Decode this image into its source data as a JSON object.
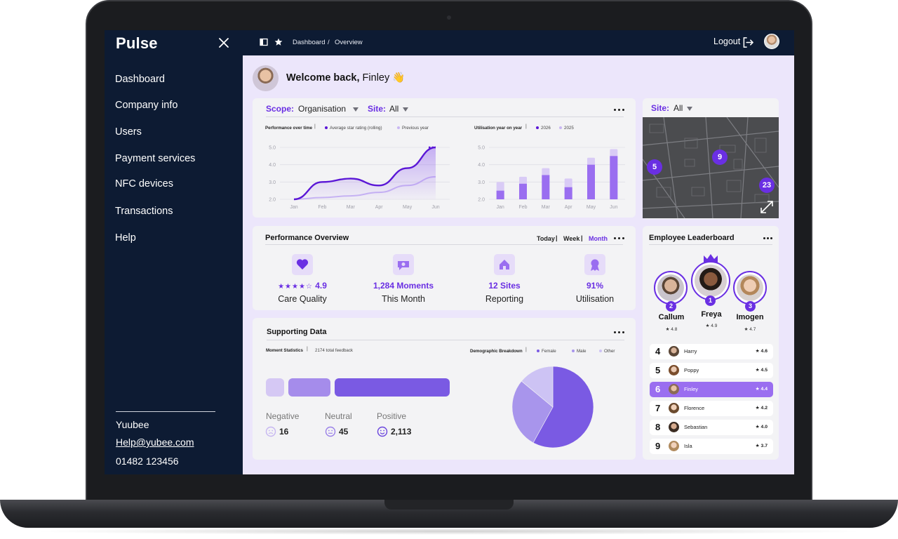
{
  "sidebar": {
    "brand": "Pulse",
    "items": [
      {
        "label": "Dashboard"
      },
      {
        "label": "Company info"
      },
      {
        "label": "Users"
      },
      {
        "label": "Payment services"
      },
      {
        "label": "NFC devices"
      },
      {
        "label": "Transactions"
      },
      {
        "label": "Help"
      }
    ],
    "footer": {
      "company": "Yuubee",
      "email": "Help@yubee.com",
      "phone": "01482 123456"
    }
  },
  "topbar": {
    "breadcrumb": [
      "Dashboard",
      "/",
      "Overview"
    ],
    "logout_label": "Logout"
  },
  "welcome": {
    "prefix": "Welcome back,",
    "name": "Finley",
    "emoji": "👋"
  },
  "filters": {
    "scope_label": "Scope:",
    "scope_value": "Organisation",
    "site_label": "Site:",
    "site_value": "All"
  },
  "chart_data": [
    {
      "type": "line",
      "title": "Performance over time",
      "x": [
        "Jan",
        "Feb",
        "Mar",
        "Apr",
        "May",
        "Jun"
      ],
      "yticks": [
        "5.0",
        "4.0",
        "3.0",
        "2.0"
      ],
      "ylim": [
        2.0,
        5.0
      ],
      "series": [
        {
          "name": "Average star rating (rolling)",
          "color": "#5a16d6",
          "values": [
            2.0,
            3.0,
            3.2,
            2.8,
            3.8,
            5.0
          ]
        },
        {
          "name": "Previous year",
          "color": "#c9b7f3",
          "values": [
            2.0,
            2.1,
            2.2,
            2.4,
            2.8,
            3.3
          ]
        }
      ]
    },
    {
      "type": "bar",
      "title": "Utilisation year on year",
      "categories": [
        "Jan",
        "Feb",
        "Mar",
        "Apr",
        "May",
        "Jun"
      ],
      "yticks": [
        "5.0",
        "4.0",
        "3.0",
        "2.0"
      ],
      "ylim": [
        2.0,
        5.0
      ],
      "series": [
        {
          "name": "2026",
          "color": "#9a6ef0",
          "values": [
            2.5,
            2.9,
            3.4,
            2.7,
            4.0,
            4.5
          ]
        },
        {
          "name": "2025",
          "color": "#d9cbf6",
          "values": [
            3.0,
            3.3,
            3.8,
            3.2,
            4.4,
            4.9
          ]
        }
      ]
    },
    {
      "type": "pie",
      "title": "Demographic Breakdown",
      "labels": [
        "Female",
        "Male",
        "Other"
      ],
      "values": [
        58,
        28,
        14
      ],
      "colors": [
        "#7a5ae3",
        "#a895ec",
        "#cdc3f4"
      ]
    }
  ],
  "perf": {
    "title": "Performance Overview",
    "ranges": [
      "Today",
      "Week",
      "Month"
    ],
    "active_range": "Month",
    "kpis": [
      {
        "value": "4.9",
        "stars": "★★★★☆",
        "label": "Care Quality",
        "icon": "heart-icon"
      },
      {
        "value": "1,284 Moments",
        "label": "This Month",
        "icon": "chat-icon"
      },
      {
        "value": "12 Sites",
        "label": "Reporting",
        "icon": "home-icon"
      },
      {
        "value": "91%",
        "label": "Utilisation",
        "icon": "award-icon"
      }
    ]
  },
  "supporting": {
    "title": "Supporting Data",
    "moment_title": "Moment Statistics",
    "total_feedback": "2174 total feedback",
    "sentiment": [
      {
        "label": "Negative",
        "value": "16"
      },
      {
        "label": "Neutral",
        "value": "45"
      },
      {
        "label": "Positive",
        "value": "2,113"
      }
    ]
  },
  "map": {
    "site_label": "Site:",
    "site_value": "All",
    "pins": [
      "5",
      "9",
      "23"
    ]
  },
  "leaderboard": {
    "title": "Employee Leaderboard",
    "podium": [
      {
        "rank": "2",
        "name": "Callum",
        "score": "★ 4.8"
      },
      {
        "rank": "1",
        "name": "Freya",
        "score": "★ 4.9"
      },
      {
        "rank": "3",
        "name": "Imogen",
        "score": "★ 4.7"
      }
    ],
    "rows": [
      {
        "rank": "4",
        "name": "Harry",
        "score": "★ 4.6"
      },
      {
        "rank": "5",
        "name": "Poppy",
        "score": "★ 4.5"
      },
      {
        "rank": "6",
        "name": "Finley",
        "score": "★ 4.4"
      },
      {
        "rank": "7",
        "name": "Florence",
        "score": "★ 4.2"
      },
      {
        "rank": "8",
        "name": "Sebastian",
        "score": "★ 4.0"
      },
      {
        "rank": "9",
        "name": "Isla",
        "score": "★ 3.7"
      }
    ],
    "active_row": "Finley"
  }
}
